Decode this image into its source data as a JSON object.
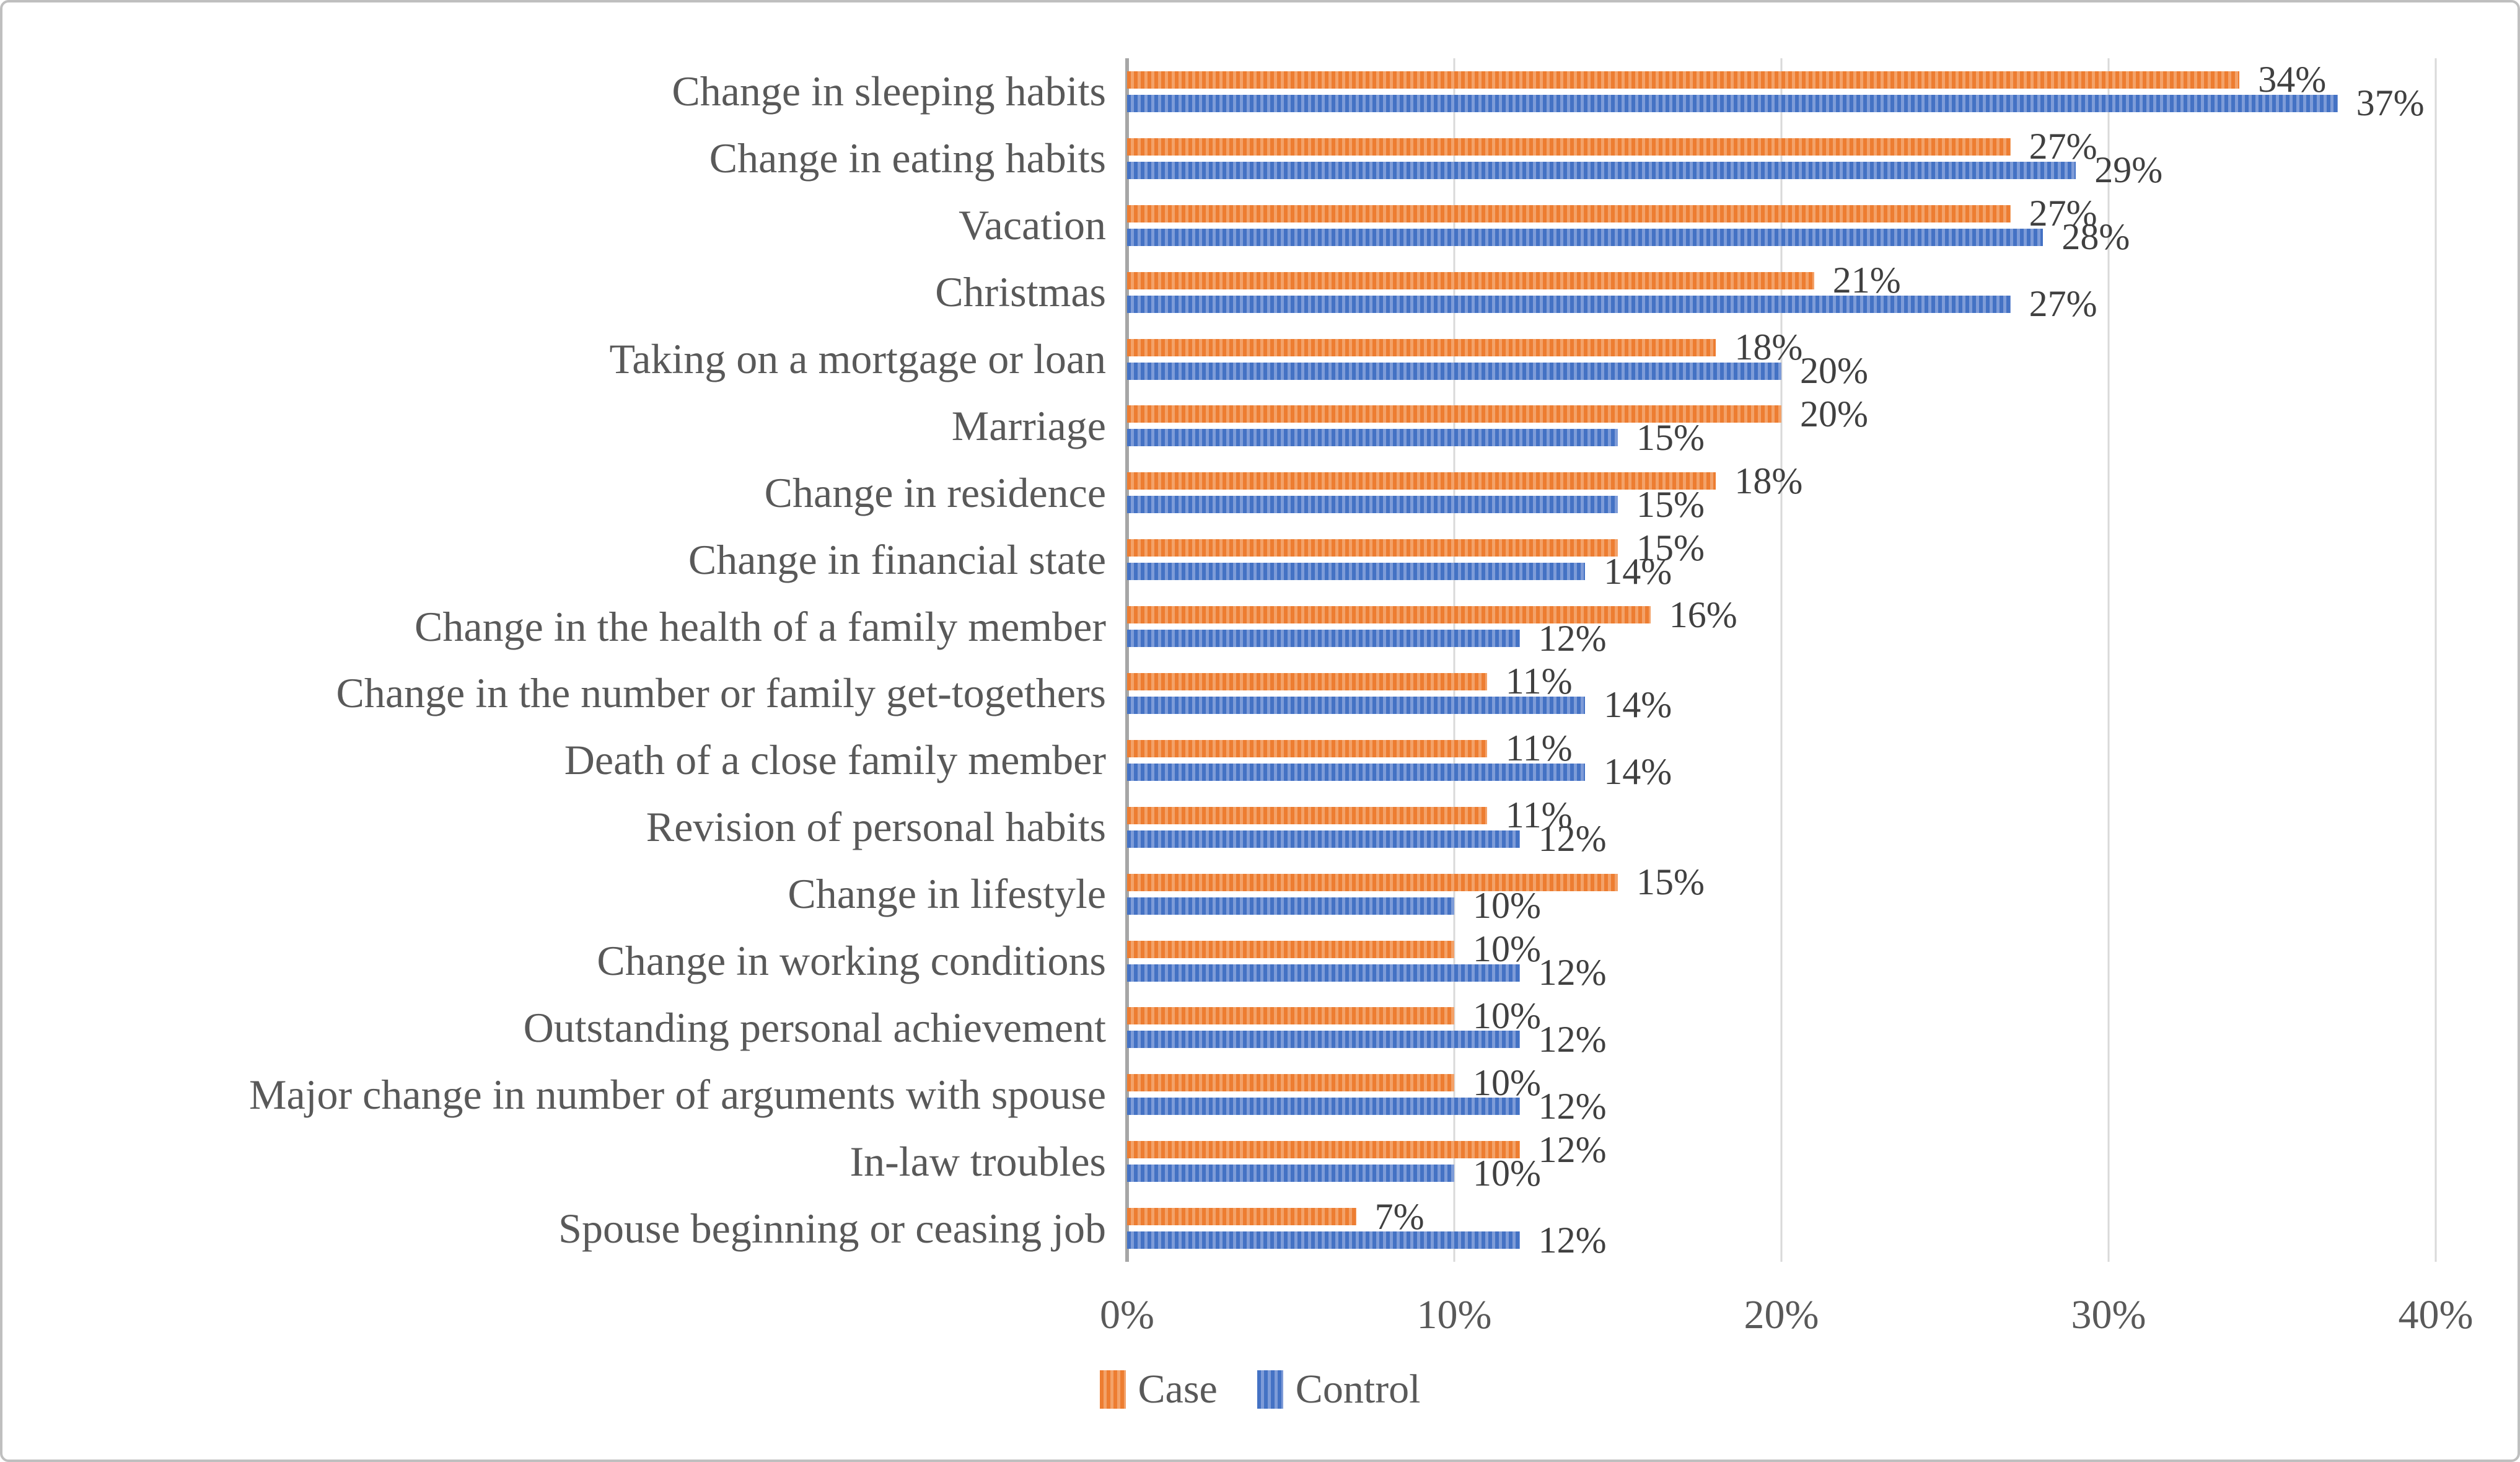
{
  "chart_data": {
    "type": "bar",
    "orientation": "horizontal",
    "title": "",
    "categories": [
      "Change in sleeping habits",
      "Change in eating habits",
      "Vacation",
      "Christmas",
      "Taking on a mortgage or loan",
      "Marriage",
      "Change in residence",
      "Change in financial state",
      "Change in the health of a family member",
      "Change in the number or family get-togethers",
      "Death of a close family member",
      "Revision of personal habits",
      "Change in lifestyle",
      "Change in working conditions",
      "Outstanding personal achievement",
      "Major change in number of arguments with spouse",
      "In-law troubles",
      "Spouse beginning or ceasing job"
    ],
    "series": [
      {
        "name": "Case",
        "color": "#ED7D31",
        "values": [
          34,
          27,
          27,
          21,
          18,
          20,
          18,
          15,
          16,
          11,
          11,
          11,
          15,
          10,
          10,
          10,
          12,
          7
        ]
      },
      {
        "name": "Control",
        "color": "#4472C4",
        "values": [
          37,
          29,
          28,
          27,
          20,
          15,
          15,
          14,
          12,
          14,
          14,
          12,
          10,
          12,
          12,
          12,
          10,
          12
        ]
      }
    ],
    "value_suffix": "%",
    "data_labels": true,
    "xlim": [
      0,
      40
    ],
    "x_ticks": [
      "0%",
      "10%",
      "20%",
      "30%",
      "40%"
    ],
    "grid": true,
    "legend_position": "bottom"
  },
  "legend": {
    "case_label": "Case",
    "control_label": "Control"
  },
  "colors": {
    "case_fill": "#ED7D31",
    "case_stripe": "#F3A269",
    "control_fill": "#4472C4",
    "control_stripe": "#7E9CD8",
    "gridline": "#D9D9D9",
    "axis_line": "#A6A6A6",
    "tick_text": "#595959",
    "category_text": "#595959",
    "data_label_text": "#404040",
    "figure_border": "#BFBFBF",
    "background": "#FFFFFF"
  }
}
